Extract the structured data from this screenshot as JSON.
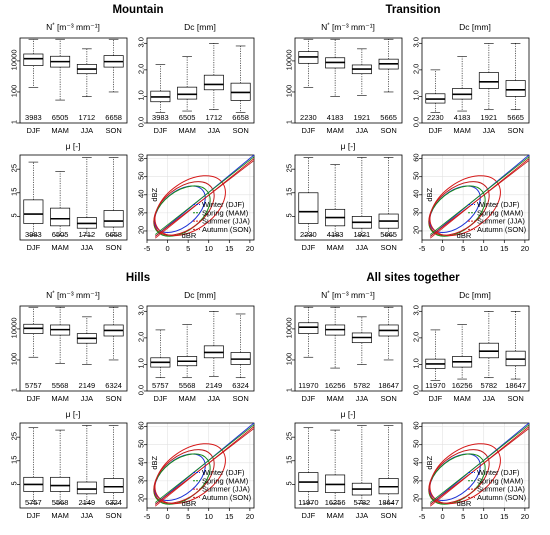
{
  "seasons": [
    "DJF",
    "MAM",
    "JJA",
    "SON"
  ],
  "titles": {
    "n_main": "N",
    "n_sup": "*",
    "n_unit": "[m⁻³ mm⁻¹]",
    "dc": "Dc [mm]",
    "mu": "μ [-]",
    "xlabel_scatter": "dBR",
    "ylabel_scatter": "dBZ"
  },
  "legend": [
    {
      "label": "Winter (DJF)",
      "color": "#1a2fd6"
    },
    {
      "label": "Spring (MAM)",
      "color": "#178a17"
    },
    {
      "label": "Summer (JJA)",
      "color": "#d61a1a"
    },
    {
      "label": "Autumn (SON)",
      "color": "#c21a1a"
    }
  ],
  "chart_data": [
    {
      "group": "Mountain",
      "type": "box",
      "counts": [
        "3983",
        "6505",
        "1712",
        "6658"
      ],
      "panels": {
        "N": {
          "scale": "log",
          "ticks": [
            "1",
            "100",
            "10000"
          ],
          "ylim": [
            1,
            300000
          ],
          "boxes": [
            {
              "q1": 5000,
              "med": 14000,
              "q3": 28000,
              "lo": 200,
              "hi": 250000
            },
            {
              "q1": 4000,
              "med": 9000,
              "q3": 20000,
              "lo": 30,
              "hi": 250000
            },
            {
              "q1": 1500,
              "med": 3000,
              "q3": 6000,
              "lo": 50,
              "hi": 60000
            },
            {
              "q1": 4000,
              "med": 9000,
              "q3": 22000,
              "lo": 100,
              "hi": 250000
            }
          ]
        },
        "Dc": {
          "scale": "linear",
          "ticks": [
            "0.0",
            "1.0",
            "2.0",
            "3.0"
          ],
          "ylim": [
            0,
            3.2
          ],
          "boxes": [
            {
              "q1": 0.8,
              "med": 0.98,
              "q3": 1.2,
              "lo": 0.4,
              "hi": 2.2
            },
            {
              "q1": 0.9,
              "med": 1.08,
              "q3": 1.35,
              "lo": 0.45,
              "hi": 2.5
            },
            {
              "q1": 1.25,
              "med": 1.45,
              "q3": 1.8,
              "lo": 0.5,
              "hi": 3.0
            },
            {
              "q1": 0.85,
              "med": 1.15,
              "q3": 1.5,
              "lo": 0.4,
              "hi": 2.9
            }
          ]
        },
        "mu": {
          "scale": "linear",
          "ticks": [
            "5",
            "15",
            "25"
          ],
          "ylim": [
            -5,
            31
          ],
          "boxes": [
            {
              "q1": 2,
              "med": 6,
              "q3": 12,
              "lo": -3,
              "hi": 28
            },
            {
              "q1": 1,
              "med": 4,
              "q3": 8.5,
              "lo": -3,
              "hi": 24
            },
            {
              "q1": 0,
              "med": 2,
              "q3": 4.5,
              "lo": -3,
              "hi": 30
            },
            {
              "q1": 0.5,
              "med": 3,
              "q3": 7.5,
              "lo": -3,
              "hi": 30
            }
          ]
        }
      }
    },
    {
      "group": "Transition",
      "type": "box",
      "counts": [
        "2230",
        "4183",
        "1921",
        "5665"
      ],
      "panels": {
        "N": {
          "scale": "log",
          "ticks": [
            "1",
            "100",
            "10000"
          ],
          "ylim": [
            1,
            300000
          ],
          "boxes": [
            {
              "q1": 7000,
              "med": 18000,
              "q3": 40000,
              "lo": 200,
              "hi": 250000
            },
            {
              "q1": 3500,
              "med": 8000,
              "q3": 16000,
              "lo": 50,
              "hi": 250000
            },
            {
              "q1": 1500,
              "med": 3000,
              "q3": 5500,
              "lo": 60,
              "hi": 60000
            },
            {
              "q1": 3000,
              "med": 6500,
              "q3": 13000,
              "lo": 100,
              "hi": 250000
            }
          ]
        },
        "Dc": {
          "scale": "linear",
          "ticks": [
            "0.0",
            "1.0",
            "2.0",
            "3.0"
          ],
          "ylim": [
            0,
            3.2
          ],
          "boxes": [
            {
              "q1": 0.75,
              "med": 0.9,
              "q3": 1.1,
              "lo": 0.4,
              "hi": 2.0
            },
            {
              "q1": 0.9,
              "med": 1.08,
              "q3": 1.3,
              "lo": 0.45,
              "hi": 2.5
            },
            {
              "q1": 1.3,
              "med": 1.55,
              "q3": 1.9,
              "lo": 0.5,
              "hi": 3.0
            },
            {
              "q1": 1.0,
              "med": 1.25,
              "q3": 1.6,
              "lo": 0.5,
              "hi": 3.0
            }
          ]
        },
        "mu": {
          "scale": "linear",
          "ticks": [
            "5",
            "15",
            "25"
          ],
          "ylim": [
            -5,
            31
          ],
          "boxes": [
            {
              "q1": 2,
              "med": 7,
              "q3": 15,
              "lo": -3,
              "hi": 30
            },
            {
              "q1": 1,
              "med": 4.5,
              "q3": 8,
              "lo": -3,
              "hi": 27
            },
            {
              "q1": 0,
              "med": 2.5,
              "q3": 5,
              "lo": -3,
              "hi": 30
            },
            {
              "q1": 0,
              "med": 3,
              "q3": 6,
              "lo": -3,
              "hi": 30
            }
          ]
        }
      }
    },
    {
      "group": "Hills",
      "type": "box",
      "counts": [
        "5757",
        "5568",
        "2149",
        "6324"
      ],
      "panels": {
        "N": {
          "scale": "log",
          "ticks": [
            "1",
            "100",
            "10000"
          ],
          "ylim": [
            1,
            300000
          ],
          "boxes": [
            {
              "q1": 5000,
              "med": 11000,
              "q3": 20000,
              "lo": 150,
              "hi": 250000
            },
            {
              "q1": 4000,
              "med": 9000,
              "q3": 18000,
              "lo": 60,
              "hi": 250000
            },
            {
              "q1": 1200,
              "med": 2500,
              "q3": 5000,
              "lo": 50,
              "hi": 60000
            },
            {
              "q1": 3500,
              "med": 8000,
              "q3": 18000,
              "lo": 100,
              "hi": 250000
            }
          ]
        },
        "Dc": {
          "scale": "linear",
          "ticks": [
            "0.0",
            "1.0",
            "2.0",
            "3.0"
          ],
          "ylim": [
            0,
            3.2
          ],
          "boxes": [
            {
              "q1": 0.9,
              "med": 1.08,
              "q3": 1.25,
              "lo": 0.5,
              "hi": 2.3
            },
            {
              "q1": 0.95,
              "med": 1.12,
              "q3": 1.3,
              "lo": 0.5,
              "hi": 2.5
            },
            {
              "q1": 1.25,
              "med": 1.45,
              "q3": 1.7,
              "lo": 0.55,
              "hi": 3.0
            },
            {
              "q1": 1.0,
              "med": 1.2,
              "q3": 1.45,
              "lo": 0.5,
              "hi": 2.9
            }
          ]
        },
        "mu": {
          "scale": "linear",
          "ticks": [
            "5",
            "15",
            "25"
          ],
          "ylim": [
            -5,
            31
          ],
          "boxes": [
            {
              "q1": 2,
              "med": 5,
              "q3": 8,
              "lo": -3,
              "hi": 29
            },
            {
              "q1": 2,
              "med": 4.5,
              "q3": 8,
              "lo": -3,
              "hi": 28
            },
            {
              "q1": 1,
              "med": 3,
              "q3": 6,
              "lo": -3,
              "hi": 30
            },
            {
              "q1": 1.5,
              "med": 4,
              "q3": 7.5,
              "lo": -3,
              "hi": 30
            }
          ]
        }
      }
    },
    {
      "group": "All sites together",
      "type": "box",
      "counts": [
        "11970",
        "16256",
        "5782",
        "18647"
      ],
      "panels": {
        "N": {
          "scale": "log",
          "ticks": [
            "1",
            "100",
            "10000"
          ],
          "ylim": [
            1,
            300000
          ],
          "boxes": [
            {
              "q1": 5000,
              "med": 13000,
              "q3": 25000,
              "lo": 150,
              "hi": 250000
            },
            {
              "q1": 4000,
              "med": 9000,
              "q3": 18000,
              "lo": 30,
              "hi": 250000
            },
            {
              "q1": 1300,
              "med": 2800,
              "q3": 5500,
              "lo": 50,
              "hi": 60000
            },
            {
              "q1": 3500,
              "med": 8000,
              "q3": 18000,
              "lo": 100,
              "hi": 250000
            }
          ]
        },
        "Dc": {
          "scale": "linear",
          "ticks": [
            "0.0",
            "1.0",
            "2.0",
            "3.0"
          ],
          "ylim": [
            0,
            3.2
          ],
          "boxes": [
            {
              "q1": 0.85,
              "med": 1.02,
              "q3": 1.2,
              "lo": 0.4,
              "hi": 2.3
            },
            {
              "q1": 0.9,
              "med": 1.1,
              "q3": 1.3,
              "lo": 0.45,
              "hi": 2.5
            },
            {
              "q1": 1.25,
              "med": 1.5,
              "q3": 1.8,
              "lo": 0.5,
              "hi": 3.0
            },
            {
              "q1": 0.95,
              "med": 1.2,
              "q3": 1.5,
              "lo": 0.45,
              "hi": 3.0
            }
          ]
        },
        "mu": {
          "scale": "linear",
          "ticks": [
            "5",
            "15",
            "25"
          ],
          "ylim": [
            -5,
            31
          ],
          "boxes": [
            {
              "q1": 2,
              "med": 6,
              "q3": 10,
              "lo": -3,
              "hi": 29
            },
            {
              "q1": 1.5,
              "med": 5,
              "q3": 9,
              "lo": -3,
              "hi": 28
            },
            {
              "q1": 0.5,
              "med": 3,
              "q3": 5.5,
              "lo": -3,
              "hi": 30
            },
            {
              "q1": 1,
              "med": 4,
              "q3": 7.5,
              "lo": -3,
              "hi": 30
            }
          ]
        }
      }
    }
  ],
  "scatter": {
    "type": "scatter",
    "xticks": [
      "-5",
      "0",
      "5",
      "10",
      "15",
      "20"
    ],
    "yticks": [
      "20",
      "30",
      "40",
      "50",
      "60"
    ],
    "xlim": [
      -5,
      21
    ],
    "ylim": [
      15,
      62
    ]
  }
}
